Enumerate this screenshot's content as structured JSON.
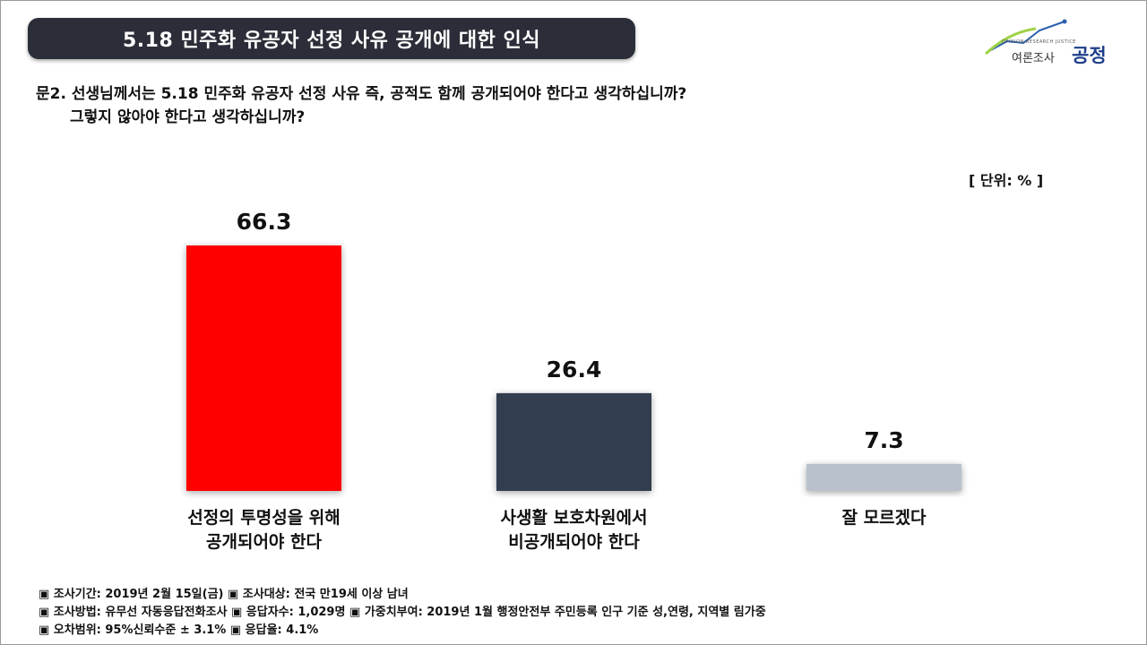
{
  "header": {
    "title": "5.18 민주화 유공자 선정 사유 공개에 대한 인식"
  },
  "logo": {
    "small_text": "OPINION RESEARCH JUSTICE",
    "text_left": "여론조사",
    "text_right": "공정"
  },
  "question": {
    "line1": "문2. 선생님께서는 5.18 민주화 유공자 선정 사유 즉, 공적도 함께 공개되어야 한다고 생각하십니까?",
    "line2": "그렇지 않아야 한다고 생각하십니까?"
  },
  "unit_label": "[ 단위: % ]",
  "chart_data": {
    "type": "bar",
    "categories": [
      [
        "선정의 투명성을 위해",
        "공개되어야 한다"
      ],
      [
        "사생활 보호차원에서",
        "비공개되어야 한다"
      ],
      [
        "잘 모르겠다"
      ]
    ],
    "values": [
      66.3,
      26.4,
      7.3
    ],
    "value_labels": [
      "66.3",
      "26.4",
      "7.3"
    ],
    "colors": [
      "#ff0000",
      "#333c4f",
      "#b9c2cc"
    ],
    "ylim": [
      0,
      66.3
    ],
    "grid": false
  },
  "footer": {
    "line1": "▣ 조사기간: 2019년 2월 15일(금) ▣ 조사대상: 전국 만19세 이상 남녀",
    "line2": "▣ 조사방법: 유무선 자동응답전화조사 ▣ 응답자수: 1,029명 ▣ 가중치부여: 2019년 1월 행정안전부 주민등록 인구 기준 성,연령, 지역별 림가중",
    "line3": "▣ 오차범위: 95%신뢰수준 ± 3.1% ▣ 응답율: 4.1%"
  }
}
